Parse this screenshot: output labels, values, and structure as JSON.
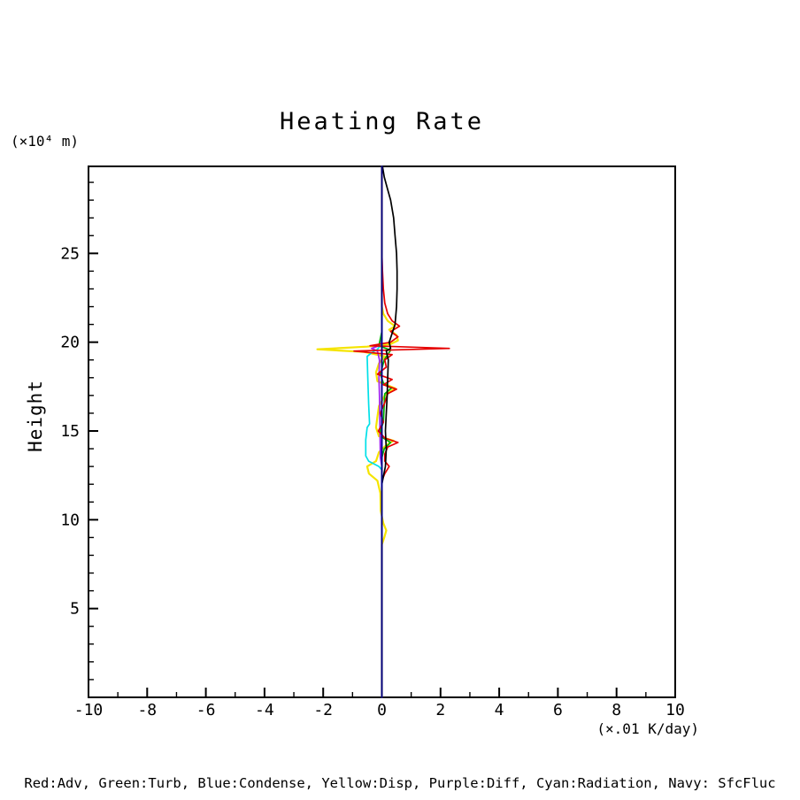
{
  "page": {
    "background": "#ffffff"
  },
  "header": {
    "title": "Heating Rate"
  },
  "axes": {
    "y_units_label": "(×10⁴ m)",
    "ylabel": "Height",
    "xlabel": "(×.01 K/day)"
  },
  "legend": {
    "text": "Red:Adv, Green:Turb, Blue:Condense, Yellow:Disp, Purple:Diff, Cyan:Radiation, Navy: SfcFluc"
  },
  "chart_data": {
    "type": "line",
    "title": "Heating Rate",
    "xlabel": "(×.01 K/day)",
    "ylabel": "Height",
    "y_units": "(×10⁴ m)",
    "xlim": [
      -10,
      10
    ],
    "ylim": [
      0,
      29.9
    ],
    "xticks": [
      -10,
      -8,
      -6,
      -4,
      -2,
      0,
      2,
      4,
      6,
      8,
      10
    ],
    "yticks": [
      5,
      10,
      15,
      20,
      25
    ],
    "x_minor_step": 1,
    "y_minor_step": 1,
    "grid": false,
    "legend_position": "bottom",
    "frame_color": "#000000",
    "series": [
      {
        "name": "Disp",
        "key": "disp",
        "color": "#f5e400",
        "profile": [
          [
            0,
            0
          ],
          [
            8.6,
            0
          ],
          [
            9.0,
            0.08
          ],
          [
            9.4,
            0.15
          ],
          [
            9.8,
            0.05
          ],
          [
            10.5,
            -0.04
          ],
          [
            11.5,
            -0.05
          ],
          [
            12.2,
            -0.15
          ],
          [
            12.6,
            -0.44
          ],
          [
            13.0,
            -0.5
          ],
          [
            13.3,
            -0.2
          ],
          [
            13.8,
            -0.1
          ],
          [
            14.2,
            0.15
          ],
          [
            14.45,
            0.4
          ],
          [
            14.7,
            -0.1
          ],
          [
            15.2,
            -0.2
          ],
          [
            15.8,
            -0.15
          ],
          [
            16.4,
            -0.1
          ],
          [
            17.0,
            0.1
          ],
          [
            17.4,
            0.45
          ],
          [
            17.8,
            -0.15
          ],
          [
            18.3,
            -0.2
          ],
          [
            18.8,
            -0.1
          ],
          [
            19.2,
            0.1
          ],
          [
            19.45,
            -0.6
          ],
          [
            19.6,
            -2.2
          ],
          [
            19.75,
            -0.5
          ],
          [
            19.9,
            0.3
          ],
          [
            20.1,
            0.55
          ],
          [
            20.4,
            0.5
          ],
          [
            20.7,
            0.25
          ],
          [
            20.9,
            0.45
          ],
          [
            21.2,
            0.2
          ],
          [
            21.6,
            0.05
          ],
          [
            22.0,
            0
          ],
          [
            29.9,
            0
          ]
        ]
      },
      {
        "name": "Radiation",
        "key": "radiation",
        "color": "#00e0e8",
        "profile": [
          [
            0,
            0
          ],
          [
            12.8,
            0
          ],
          [
            13.0,
            -0.1
          ],
          [
            13.3,
            -0.45
          ],
          [
            13.6,
            -0.55
          ],
          [
            14.5,
            -0.55
          ],
          [
            15.2,
            -0.5
          ],
          [
            15.4,
            -0.42
          ],
          [
            16.5,
            -0.45
          ],
          [
            18.0,
            -0.48
          ],
          [
            19.2,
            -0.5
          ],
          [
            19.4,
            -0.35
          ],
          [
            19.6,
            -0.15
          ],
          [
            19.8,
            -0.05
          ],
          [
            20.1,
            0
          ],
          [
            29.9,
            0
          ]
        ]
      },
      {
        "name": "Diff",
        "key": "diff",
        "color": "#a020f0",
        "profile": [
          [
            0,
            0
          ],
          [
            13.0,
            0
          ],
          [
            13.5,
            -0.05
          ],
          [
            17.0,
            -0.08
          ],
          [
            18.0,
            -0.1
          ],
          [
            19.0,
            -0.08
          ],
          [
            19.5,
            -0.15
          ],
          [
            19.65,
            -0.35
          ],
          [
            19.8,
            -0.1
          ],
          [
            20.2,
            0
          ],
          [
            29.9,
            0
          ]
        ]
      },
      {
        "name": "Turb",
        "key": "turb",
        "color": "#00b000",
        "profile": [
          [
            0,
            0
          ],
          [
            13.5,
            0
          ],
          [
            14.0,
            0.08
          ],
          [
            14.35,
            0.3
          ],
          [
            14.6,
            0.05
          ],
          [
            15.0,
            -0.05
          ],
          [
            15.5,
            0.05
          ],
          [
            16.5,
            0.08
          ],
          [
            17.1,
            0.1
          ],
          [
            17.4,
            0.32
          ],
          [
            17.7,
            0.05
          ],
          [
            18.2,
            -0.05
          ],
          [
            19.0,
            0.08
          ],
          [
            19.55,
            0.3
          ],
          [
            19.8,
            -0.1
          ],
          [
            20.2,
            -0.05
          ],
          [
            20.6,
            0
          ],
          [
            29.9,
            0
          ]
        ]
      },
      {
        "name": "Adv",
        "key": "adv",
        "color": "#e60000",
        "profile": [
          [
            0,
            0
          ],
          [
            12.2,
            0
          ],
          [
            12.6,
            0.1
          ],
          [
            13.0,
            0.25
          ],
          [
            13.3,
            0.1
          ],
          [
            13.7,
            0.1
          ],
          [
            14.1,
            0.2
          ],
          [
            14.35,
            0.55
          ],
          [
            14.6,
            0.1
          ],
          [
            15.0,
            -0.12
          ],
          [
            15.5,
            0.05
          ],
          [
            16.0,
            -0.05
          ],
          [
            16.6,
            0.1
          ],
          [
            17.1,
            0.2
          ],
          [
            17.35,
            0.5
          ],
          [
            17.6,
            0.05
          ],
          [
            17.9,
            0.35
          ],
          [
            18.2,
            -0.15
          ],
          [
            18.6,
            0.15
          ],
          [
            19.0,
            0.1
          ],
          [
            19.3,
            0.35
          ],
          [
            19.5,
            -0.95
          ],
          [
            19.65,
            2.3
          ],
          [
            19.8,
            -0.4
          ],
          [
            20.0,
            0.3
          ],
          [
            20.3,
            0.55
          ],
          [
            20.6,
            0.3
          ],
          [
            20.9,
            0.6
          ],
          [
            21.2,
            0.35
          ],
          [
            21.6,
            0.2
          ],
          [
            22.2,
            0.1
          ],
          [
            23.0,
            0.05
          ],
          [
            24.0,
            0.02
          ],
          [
            25.0,
            0
          ],
          [
            29.9,
            0
          ]
        ]
      },
      {
        "name": "Black",
        "key": "black",
        "color": "#000000",
        "profile": [
          [
            0,
            0
          ],
          [
            12.0,
            0
          ],
          [
            12.5,
            0.06
          ],
          [
            13.0,
            0.12
          ],
          [
            14.0,
            0.15
          ],
          [
            15.0,
            0.12
          ],
          [
            16.0,
            0.15
          ],
          [
            17.0,
            0.18
          ],
          [
            18.0,
            0.2
          ],
          [
            19.0,
            0.22
          ],
          [
            19.5,
            0.15
          ],
          [
            19.65,
            0.3
          ],
          [
            20.0,
            0.25
          ],
          [
            20.5,
            0.35
          ],
          [
            21.0,
            0.45
          ],
          [
            22.0,
            0.5
          ],
          [
            23.0,
            0.52
          ],
          [
            24.0,
            0.52
          ],
          [
            25.0,
            0.5
          ],
          [
            26.0,
            0.45
          ],
          [
            27.0,
            0.4
          ],
          [
            28.0,
            0.3
          ],
          [
            28.7,
            0.18
          ],
          [
            29.3,
            0.08
          ],
          [
            29.9,
            0.02
          ]
        ]
      },
      {
        "name": "Condense",
        "key": "condense",
        "color": "#0000ff",
        "profile": [
          [
            0,
            0
          ],
          [
            29.9,
            0
          ]
        ]
      },
      {
        "name": "SfcFluc",
        "key": "sfcfluc",
        "color": "#000080",
        "profile": [
          [
            0,
            0
          ],
          [
            29.9,
            0
          ]
        ]
      }
    ]
  }
}
